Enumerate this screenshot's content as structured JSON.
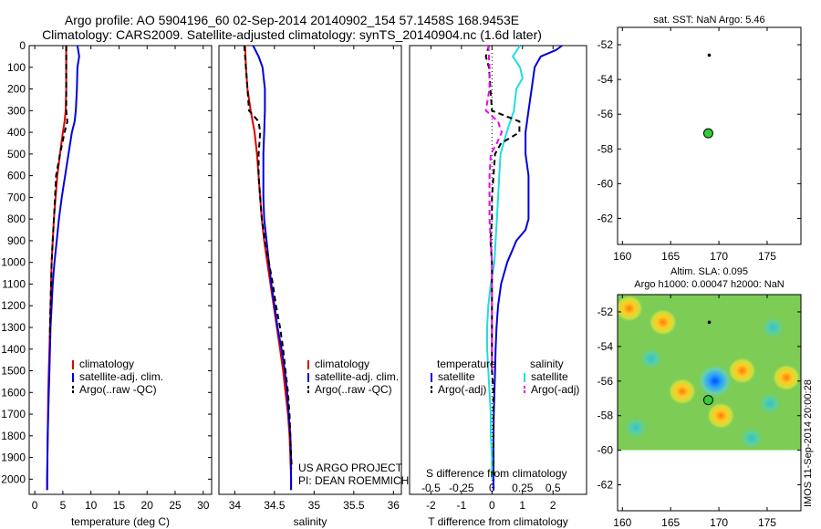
{
  "header": {
    "line1": "Argo profile: AO 5904196_60 02-Sep-2014 20140902_154 57.1458S 168.9453E",
    "line2": "Climatology: CARS2009. Satellite-adjusted climatology: synTS_20140904.nc (1.6d later)"
  },
  "colors": {
    "climatology": "#e00000",
    "satellite": "#0000dd",
    "argo": "#000000",
    "satellite_salinity": "#22dddd",
    "argo_salinity_adj": "#ee00ee"
  },
  "stamp": "IMOS 11-Sep-2014 20:00:28",
  "chart_data": [
    {
      "id": "temperature",
      "type": "line",
      "xlabel": "temperature (deg C)",
      "ylabel": "",
      "xlim": [
        -1,
        31.5
      ],
      "ylim": [
        2070,
        0
      ],
      "xticks": [
        0,
        5,
        10,
        15,
        20,
        25,
        30
      ],
      "yticks": [
        0,
        100,
        200,
        300,
        400,
        500,
        600,
        700,
        800,
        900,
        1000,
        1100,
        1200,
        1300,
        1400,
        1500,
        1600,
        1700,
        1800,
        1900,
        2000
      ],
      "series": [
        {
          "name": "climatology",
          "color": "#e00000",
          "style": "solid",
          "depth": [
            0,
            100,
            200,
            300,
            350,
            400,
            500,
            600,
            700,
            800,
            900,
            1000,
            1100,
            1200,
            1300,
            1400,
            1500,
            1600,
            1800,
            2000,
            2050
          ],
          "values": [
            5.6,
            5.6,
            5.6,
            5.5,
            5.3,
            5.0,
            4.5,
            4.0,
            3.7,
            3.4,
            3.2,
            3.0,
            2.9,
            2.8,
            2.7,
            2.6,
            2.5,
            2.4,
            2.3,
            2.2,
            2.2
          ]
        },
        {
          "name": "satellite-adj. clim.",
          "color": "#0000dd",
          "style": "solid",
          "depth": [
            0,
            50,
            100,
            200,
            300,
            350,
            400,
            500,
            600,
            700,
            800,
            900,
            1000,
            1100,
            1200,
            1300,
            1400,
            1500,
            1600,
            1800,
            2000,
            2050
          ],
          "values": [
            7.6,
            7.9,
            7.6,
            7.5,
            7.3,
            7.1,
            6.6,
            6.0,
            5.4,
            4.8,
            4.3,
            3.9,
            3.5,
            3.2,
            3.0,
            2.8,
            2.7,
            2.6,
            2.5,
            2.3,
            2.2,
            2.2
          ]
        },
        {
          "name": "Argo(..raw -QC)",
          "color": "#000000",
          "style": "dashed",
          "depth": [
            0,
            100,
            200,
            300,
            350,
            400,
            500,
            600,
            700,
            800,
            900,
            1000,
            1100,
            1200,
            1300,
            1350
          ],
          "values": [
            5.6,
            5.6,
            5.6,
            5.6,
            5.8,
            5.3,
            4.5,
            3.8,
            3.6,
            3.4,
            3.2,
            3.0,
            2.9,
            2.8,
            2.7,
            2.7
          ]
        }
      ],
      "legend": {
        "placement": "lower-left",
        "entries": [
          "climatology",
          "satellite-adj. clim.",
          "Argo(..raw -QC)"
        ]
      }
    },
    {
      "id": "salinity",
      "type": "line",
      "xlabel": "salinity",
      "xlim": [
        33.8,
        36.1
      ],
      "ylim": [
        2070,
        0
      ],
      "xticks": [
        34,
        34.5,
        35,
        35.5,
        36
      ],
      "xticklabels": [
        "34",
        "34.5",
        "35",
        "35.5",
        "36"
      ],
      "series": [
        {
          "name": "climatology",
          "color": "#e00000",
          "style": "solid",
          "depth": [
            0,
            100,
            200,
            300,
            400,
            500,
            600,
            700,
            800,
            900,
            1000,
            1100,
            1200,
            1300,
            1400,
            1500,
            1600,
            1700,
            1800,
            1900,
            2000,
            2050
          ],
          "values": [
            34.13,
            34.14,
            34.16,
            34.2,
            34.25,
            34.28,
            34.3,
            34.32,
            34.34,
            34.37,
            34.41,
            34.45,
            34.49,
            34.53,
            34.57,
            34.61,
            34.64,
            34.67,
            34.69,
            34.7,
            34.71,
            34.71
          ]
        },
        {
          "name": "satellite-adj. clim.",
          "color": "#0000dd",
          "style": "solid",
          "depth": [
            0,
            50,
            100,
            200,
            300,
            400,
            500,
            600,
            700,
            800,
            900,
            1000,
            1100,
            1200,
            1300,
            1400,
            1500,
            1600,
            1700,
            1800,
            1900,
            2000,
            2050
          ],
          "values": [
            34.23,
            34.3,
            34.35,
            34.38,
            34.38,
            34.37,
            34.36,
            34.36,
            34.36,
            34.37,
            34.4,
            34.43,
            34.46,
            34.5,
            34.54,
            34.59,
            34.63,
            34.66,
            34.68,
            34.7,
            34.71,
            34.71,
            34.71
          ]
        },
        {
          "name": "Argo(..raw -QC)",
          "color": "#000000",
          "style": "dashed",
          "depth": [
            0,
            100,
            200,
            300,
            350,
            400,
            500,
            600,
            700,
            800,
            900,
            1000,
            1100,
            1200,
            1300,
            1400,
            1500,
            1600,
            1700,
            1800,
            1900,
            1950
          ],
          "values": [
            34.12,
            34.14,
            34.16,
            34.18,
            34.3,
            34.32,
            34.3,
            34.3,
            34.32,
            34.34,
            34.38,
            34.43,
            34.48,
            34.52,
            34.57,
            34.61,
            34.64,
            34.67,
            34.69,
            34.7,
            34.71,
            34.72
          ]
        }
      ],
      "legend": {
        "placement": "lower-left",
        "entries": [
          "climatology",
          "satellite-adj. clim.",
          "Argo(..raw -QC)"
        ]
      },
      "annotation": [
        "US ARGO PROJECT",
        "PI: DEAN ROEMMICH"
      ]
    },
    {
      "id": "difference",
      "type": "line",
      "xlabel": "T difference from climatology",
      "xlabel_top": "S difference from climatology",
      "xlim": [
        -2.7,
        3.1
      ],
      "ylim": [
        2070,
        0
      ],
      "xticks": [
        -2,
        -1,
        0,
        1,
        2
      ],
      "xticks_salinity": [
        -0.5,
        -0.25,
        0,
        0.25,
        0.5
      ],
      "xticks_salinity_labels": [
        "-0.5",
        "-0.25",
        "0",
        "0.25",
        "0.5"
      ],
      "series": [
        {
          "name": "satellite",
          "group": "temperature",
          "color": "#0000dd",
          "style": "solid",
          "depth": [
            0,
            20,
            50,
            100,
            200,
            300,
            400,
            500,
            600,
            700,
            800,
            850,
            900,
            1000,
            1100,
            1200,
            1300,
            1400,
            1500,
            1600,
            1700,
            1800,
            1900,
            2000,
            2050
          ],
          "values": [
            2.3,
            2.1,
            1.6,
            1.4,
            1.3,
            1.2,
            1.1,
            1.1,
            1.2,
            1.2,
            1.2,
            1.1,
            0.8,
            0.5,
            0.3,
            0.2,
            0.15,
            0.12,
            0.1,
            0.08,
            0.06,
            0.05,
            0.05,
            0.05,
            0.05
          ]
        },
        {
          "name": "satellite",
          "group": "salinity",
          "color": "#22dddd",
          "style": "solid",
          "depth": [
            0,
            50,
            100,
            150,
            200,
            300,
            400,
            500,
            600,
            700,
            800,
            900,
            1000,
            1100,
            1200,
            1300,
            1400,
            1500,
            1600,
            1700,
            1800,
            1900,
            2000
          ],
          "values": [
            0.23,
            0.17,
            0.23,
            0.25,
            0.2,
            0.18,
            0.12,
            0.07,
            0.06,
            0.05,
            0.04,
            0.03,
            0.02,
            -0.01,
            -0.03,
            -0.04,
            -0.04,
            -0.03,
            -0.02,
            -0.01,
            -0.01,
            0.0,
            0.0
          ]
        },
        {
          "name": "Argo(-adj)",
          "group": "temperature",
          "color": "#000000",
          "style": "dashed",
          "depth": [
            0,
            50,
            100,
            200,
            300,
            350,
            400,
            450,
            500,
            600,
            700,
            800,
            900,
            1000,
            1100,
            1200,
            1300,
            1400,
            1500,
            1600,
            1700,
            1800,
            1900,
            2000
          ],
          "values": [
            -0.1,
            -0.2,
            -0.1,
            -0.05,
            0.0,
            0.9,
            0.9,
            0.3,
            0.1,
            0.05,
            0.0,
            0.0,
            -0.05,
            0.0,
            0.0,
            0.0,
            0.0,
            0.0,
            0.0,
            0.05,
            0.05,
            0.05,
            0.05,
            0.05
          ]
        },
        {
          "name": "Argo(-adj)",
          "group": "salinity",
          "color": "#ee00ee",
          "style": "dashed",
          "depth": [
            0,
            100,
            200,
            300,
            350,
            400,
            450,
            500,
            600,
            700,
            800,
            900,
            1000,
            1100,
            1200,
            1300,
            1400,
            1500
          ],
          "values": [
            -0.03,
            -0.02,
            -0.02,
            -0.05,
            0.05,
            0.08,
            0.04,
            -0.01,
            -0.02,
            -0.02,
            -0.02,
            -0.01,
            0.0,
            0.0,
            0.0,
            0.0,
            0.0,
            0.0
          ]
        }
      ],
      "legend": {
        "placement": "lower-center",
        "headers": [
          "temperature",
          "salinity"
        ],
        "entries": [
          "satellite",
          "Argo(-adj)",
          "satellite",
          "Argo(-adj)"
        ]
      }
    },
    {
      "id": "sst-map",
      "type": "scatter",
      "title": "sat. SST: NaN Argo: 5.46",
      "xlim": [
        159.5,
        178.5
      ],
      "ylim": [
        -63.5,
        -51
      ],
      "xticks": [
        160,
        165,
        170,
        175
      ],
      "yticks": [
        -52,
        -54,
        -56,
        -58,
        -60,
        -62
      ],
      "points": [
        {
          "x": 169.0,
          "y": -52.6,
          "marker": "dot"
        },
        {
          "x": 168.9,
          "y": -57.1,
          "marker": "circle",
          "color": "#33cc33"
        }
      ]
    },
    {
      "id": "sla-map",
      "type": "heatmap",
      "title_line1": "Altim. SLA: 0.095",
      "title_line2": "Argo h1000: 0.00047 h2000: NaN",
      "xlim": [
        159.5,
        178.5
      ],
      "ylim": [
        -63.5,
        -51
      ],
      "xticks": [
        160,
        165,
        170,
        175
      ],
      "yticks": [
        -52,
        -54,
        -56,
        -58,
        -60,
        -62
      ],
      "data_ylim": [
        -60,
        -51
      ],
      "blobs": [
        {
          "x": 169.6,
          "y": -56.0,
          "kind": "strong-low"
        },
        {
          "x": 166.2,
          "y": -56.6,
          "kind": "high"
        },
        {
          "x": 170.2,
          "y": -58.0,
          "kind": "high"
        },
        {
          "x": 172.4,
          "y": -55.4,
          "kind": "high"
        },
        {
          "x": 163.0,
          "y": -54.7,
          "kind": "low"
        },
        {
          "x": 175.6,
          "y": -52.9,
          "kind": "low"
        },
        {
          "x": 175.3,
          "y": -57.3,
          "kind": "low"
        },
        {
          "x": 161.4,
          "y": -58.7,
          "kind": "low"
        },
        {
          "x": 164.2,
          "y": -52.6,
          "kind": "high"
        },
        {
          "x": 160.7,
          "y": -51.8,
          "kind": "high"
        },
        {
          "x": 173.4,
          "y": -59.3,
          "kind": "low"
        },
        {
          "x": 177.0,
          "y": -55.8,
          "kind": "high"
        }
      ],
      "points": [
        {
          "x": 169.0,
          "y": -52.6,
          "marker": "dot"
        },
        {
          "x": 168.9,
          "y": -57.1,
          "marker": "circle",
          "color": "#33cc33"
        }
      ]
    }
  ]
}
